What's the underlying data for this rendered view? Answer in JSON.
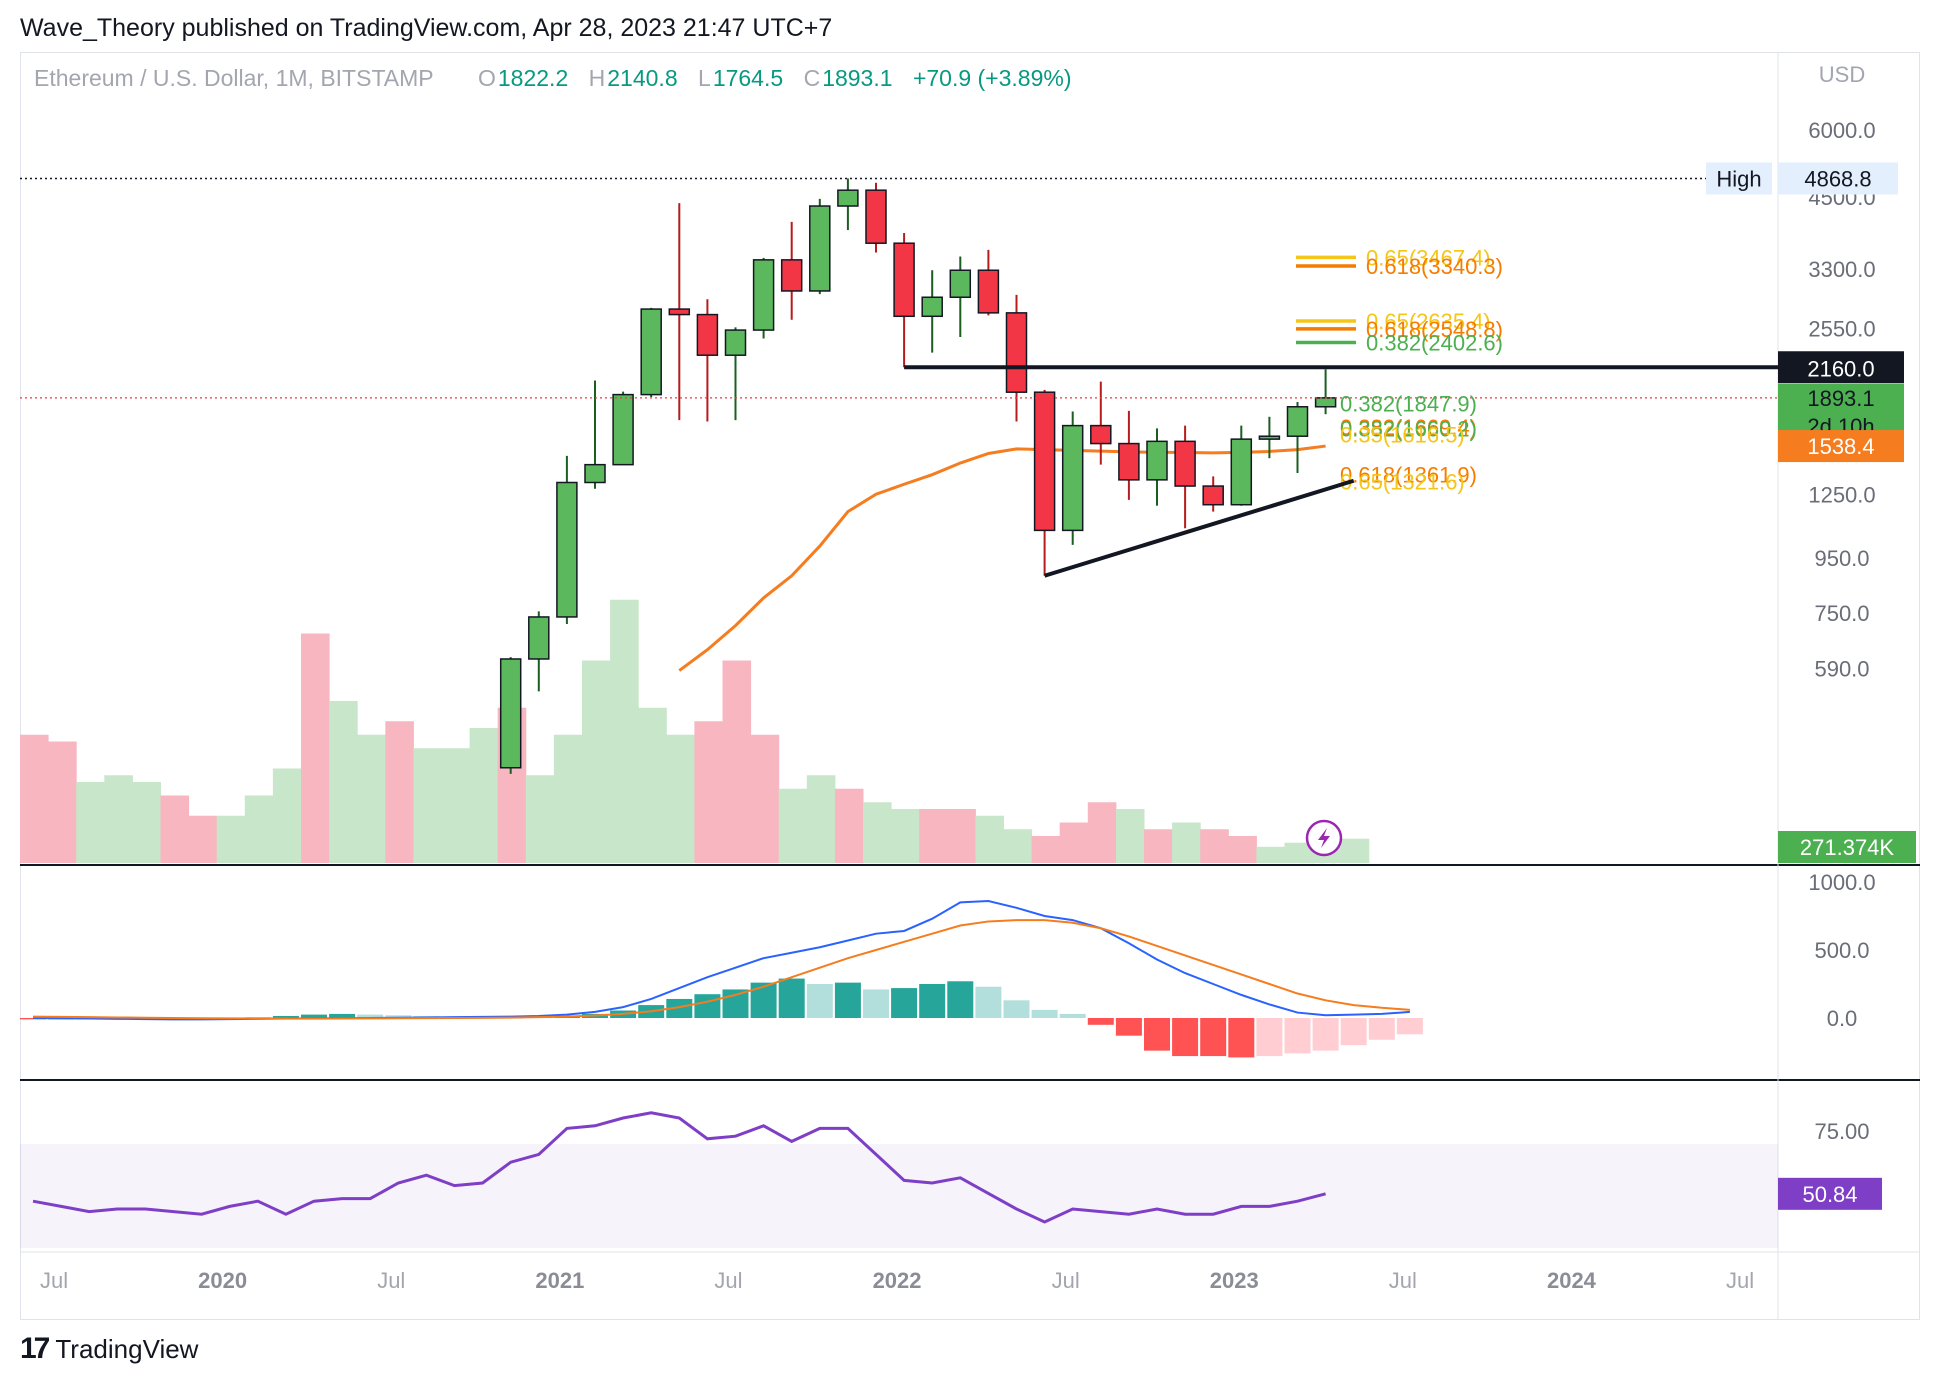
{
  "publisher_line": "Wave_Theory published on TradingView.com, Apr 28, 2023 21:47 UTC+7",
  "legend": {
    "symbol": "Ethereum / U.S. Dollar, 1M, BITSTAMP",
    "o_label": "O",
    "o": "1822.2",
    "h_label": "H",
    "h": "2140.8",
    "l_label": "L",
    "l": "1764.5",
    "c_label": "C",
    "c": "1893.1",
    "change": "+70.9 (+3.89%)"
  },
  "footer": {
    "brand": "TradingView",
    "logo_text": "17"
  },
  "colors": {
    "up": "#5cb85c",
    "down": "#f23645",
    "ema": "#f57c1f",
    "macd": "#2962ff",
    "signal": "#f57c1f",
    "rsi": "#7e3fc6",
    "fib_green": "#4caf50",
    "fib_orange": "#f57c00",
    "fib_yellow": "#f5c518",
    "price_dotted": "#f23645"
  },
  "chart_data": [
    {
      "type": "candlestick",
      "title": "Ethereum / U.S. Dollar, 1M, BITSTAMP",
      "currency": "USD",
      "y_scale": "log",
      "ylim": [
        430,
        7300
      ],
      "y_ticks": [
        "6000.0",
        "4500.0",
        "3300.0",
        "2550.0",
        "1250.0",
        "950.0",
        "750.0",
        "590.0"
      ],
      "x_ticks": [
        "Jul",
        "2020",
        "Jul",
        "2021",
        "Jul",
        "2022",
        "Jul",
        "2023",
        "Jul",
        "2024",
        "Jul"
      ],
      "candles": [
        {
          "month": "2020-11",
          "o": 385,
          "h": 620,
          "l": 375,
          "c": 615
        },
        {
          "month": "2020-12",
          "o": 615,
          "h": 755,
          "l": 535,
          "c": 737
        },
        {
          "month": "2021-01",
          "o": 737,
          "h": 1475,
          "l": 715,
          "c": 1315
        },
        {
          "month": "2021-02",
          "o": 1315,
          "h": 2040,
          "l": 1280,
          "c": 1420
        },
        {
          "month": "2021-03",
          "o": 1420,
          "h": 1945,
          "l": 1420,
          "c": 1920
        },
        {
          "month": "2021-04",
          "o": 1920,
          "h": 2790,
          "l": 1900,
          "c": 2775
        },
        {
          "month": "2021-05",
          "o": 2775,
          "h": 4380,
          "l": 1720,
          "c": 2710
        },
        {
          "month": "2021-06",
          "o": 2710,
          "h": 2895,
          "l": 1710,
          "c": 2275
        },
        {
          "month": "2021-07",
          "o": 2275,
          "h": 2565,
          "l": 1720,
          "c": 2535
        },
        {
          "month": "2021-08",
          "o": 2535,
          "h": 3460,
          "l": 2445,
          "c": 3430
        },
        {
          "month": "2021-09",
          "o": 3430,
          "h": 4040,
          "l": 2650,
          "c": 3000
        },
        {
          "month": "2021-10",
          "o": 3000,
          "h": 4460,
          "l": 2960,
          "c": 4325
        },
        {
          "month": "2021-11",
          "o": 4325,
          "h": 4870,
          "l": 3900,
          "c": 4630
        },
        {
          "month": "2021-12",
          "o": 4630,
          "h": 4780,
          "l": 3540,
          "c": 3685
        },
        {
          "month": "2022-01",
          "o": 3685,
          "h": 3850,
          "l": 2160,
          "c": 2690
        },
        {
          "month": "2022-02",
          "o": 2690,
          "h": 3280,
          "l": 2300,
          "c": 2920
        },
        {
          "month": "2022-03",
          "o": 2920,
          "h": 3480,
          "l": 2460,
          "c": 3280
        },
        {
          "month": "2022-04",
          "o": 3280,
          "h": 3580,
          "l": 2700,
          "c": 2730
        },
        {
          "month": "2022-05",
          "o": 2730,
          "h": 2950,
          "l": 1710,
          "c": 1940
        },
        {
          "month": "2022-06",
          "o": 1940,
          "h": 1960,
          "l": 880,
          "c": 1070
        },
        {
          "month": "2022-07",
          "o": 1070,
          "h": 1785,
          "l": 1005,
          "c": 1680
        },
        {
          "month": "2022-08",
          "o": 1680,
          "h": 2030,
          "l": 1420,
          "c": 1555
        },
        {
          "month": "2022-09",
          "o": 1555,
          "h": 1790,
          "l": 1220,
          "c": 1330
        },
        {
          "month": "2022-10",
          "o": 1330,
          "h": 1660,
          "l": 1190,
          "c": 1570
        },
        {
          "month": "2022-11",
          "o": 1570,
          "h": 1680,
          "l": 1080,
          "c": 1295
        },
        {
          "month": "2022-12",
          "o": 1295,
          "h": 1350,
          "l": 1160,
          "c": 1195
        },
        {
          "month": "2023-01",
          "o": 1195,
          "h": 1680,
          "l": 1190,
          "c": 1585
        },
        {
          "month": "2023-02",
          "o": 1585,
          "h": 1745,
          "l": 1460,
          "c": 1605
        },
        {
          "month": "2023-03",
          "o": 1605,
          "h": 1860,
          "l": 1370,
          "c": 1822
        },
        {
          "month": "2023-04",
          "o": 1822,
          "h": 2140.8,
          "l": 1764.5,
          "c": 1893.1
        }
      ],
      "ema": [
        {
          "month": "2021-05",
          "v": 585
        },
        {
          "month": "2021-06",
          "v": 640
        },
        {
          "month": "2021-07",
          "v": 710
        },
        {
          "month": "2021-08",
          "v": 800
        },
        {
          "month": "2021-09",
          "v": 880
        },
        {
          "month": "2021-10",
          "v": 1000
        },
        {
          "month": "2021-11",
          "v": 1160
        },
        {
          "month": "2021-12",
          "v": 1250
        },
        {
          "month": "2022-01",
          "v": 1305
        },
        {
          "month": "2022-02",
          "v": 1360
        },
        {
          "month": "2022-03",
          "v": 1430
        },
        {
          "month": "2022-04",
          "v": 1490
        },
        {
          "month": "2022-05",
          "v": 1520
        },
        {
          "month": "2022-06",
          "v": 1515
        },
        {
          "month": "2022-07",
          "v": 1510
        },
        {
          "month": "2022-08",
          "v": 1505
        },
        {
          "month": "2022-09",
          "v": 1500
        },
        {
          "month": "2022-10",
          "v": 1498
        },
        {
          "month": "2022-11",
          "v": 1496
        },
        {
          "month": "2022-12",
          "v": 1494
        },
        {
          "month": "2023-01",
          "v": 1497
        },
        {
          "month": "2023-02",
          "v": 1503
        },
        {
          "month": "2023-03",
          "v": 1515
        },
        {
          "month": "2023-04",
          "v": 1538.4
        }
      ],
      "volume": [
        {
          "month": "2019-06",
          "v": 95,
          "dir": "down"
        },
        {
          "month": "2019-07",
          "v": 90,
          "dir": "down"
        },
        {
          "month": "2019-08",
          "v": 60,
          "dir": "up"
        },
        {
          "month": "2019-09",
          "v": 65,
          "dir": "up"
        },
        {
          "month": "2019-10",
          "v": 60,
          "dir": "up"
        },
        {
          "month": "2019-11",
          "v": 50,
          "dir": "down"
        },
        {
          "month": "2019-12",
          "v": 35,
          "dir": "down"
        },
        {
          "month": "2020-01",
          "v": 35,
          "dir": "up"
        },
        {
          "month": "2020-02",
          "v": 50,
          "dir": "up"
        },
        {
          "month": "2020-03",
          "v": 70,
          "dir": "up"
        },
        {
          "month": "2020-04",
          "v": 170,
          "dir": "down"
        },
        {
          "month": "2020-05",
          "v": 120,
          "dir": "up"
        },
        {
          "month": "2020-06",
          "v": 95,
          "dir": "up"
        },
        {
          "month": "2020-07",
          "v": 105,
          "dir": "down"
        },
        {
          "month": "2020-08",
          "v": 85,
          "dir": "up"
        },
        {
          "month": "2020-09",
          "v": 85,
          "dir": "up"
        },
        {
          "month": "2020-10",
          "v": 100,
          "dir": "up"
        },
        {
          "month": "2020-11",
          "v": 115,
          "dir": "down"
        },
        {
          "month": "2020-12",
          "v": 65,
          "dir": "up"
        },
        {
          "month": "2021-01",
          "v": 95,
          "dir": "up"
        },
        {
          "month": "2021-02",
          "v": 150,
          "dir": "up"
        },
        {
          "month": "2021-03",
          "v": 195,
          "dir": "up"
        },
        {
          "month": "2021-04",
          "v": 115,
          "dir": "up"
        },
        {
          "month": "2021-05",
          "v": 95,
          "dir": "up"
        },
        {
          "month": "2021-06",
          "v": 105,
          "dir": "down"
        },
        {
          "month": "2021-07",
          "v": 150,
          "dir": "down"
        },
        {
          "month": "2021-08",
          "v": 95,
          "dir": "down"
        },
        {
          "month": "2021-09",
          "v": 55,
          "dir": "up"
        },
        {
          "month": "2021-10",
          "v": 65,
          "dir": "up"
        },
        {
          "month": "2021-11",
          "v": 55,
          "dir": "down"
        },
        {
          "month": "2021-12",
          "v": 45,
          "dir": "up"
        },
        {
          "month": "2021-13",
          "v": 40,
          "dir": "up"
        },
        {
          "month": "2022-01",
          "v": 40,
          "dir": "down"
        },
        {
          "month": "2022-02",
          "v": 40,
          "dir": "down"
        },
        {
          "month": "2022-03",
          "v": 35,
          "dir": "up"
        },
        {
          "month": "2022-04",
          "v": 25,
          "dir": "up"
        },
        {
          "month": "2022-05",
          "v": 20,
          "dir": "down"
        },
        {
          "month": "2022-06",
          "v": 30,
          "dir": "down"
        },
        {
          "month": "2022-07",
          "v": 45,
          "dir": "down"
        },
        {
          "month": "2022-08",
          "v": 40,
          "dir": "up"
        },
        {
          "month": "2022-09",
          "v": 25,
          "dir": "down"
        },
        {
          "month": "2022-10",
          "v": 30,
          "dir": "up"
        },
        {
          "month": "2022-11",
          "v": 25,
          "dir": "down"
        },
        {
          "month": "2022-12",
          "v": 20,
          "dir": "down"
        },
        {
          "month": "2023-01",
          "v": 12,
          "dir": "up"
        },
        {
          "month": "2023-02",
          "v": 15,
          "dir": "up"
        },
        {
          "month": "2023-03",
          "v": 12,
          "dir": "up"
        },
        {
          "month": "2023-04",
          "v": 18,
          "dir": "up"
        }
      ],
      "annotations": {
        "high": {
          "label": "High",
          "value": "4868.8",
          "price": 4868.8
        },
        "horizontal_level": {
          "label": "2160.0",
          "price": 2160
        },
        "current_price": {
          "label": "1893.1",
          "countdown": "2d 10h",
          "price": 1893.1
        },
        "ema_label": "1538.4",
        "volume_label": "271.374K",
        "fib_levels": [
          {
            "text": "0.65(3467.4)",
            "price": 3467.4,
            "color": "yellow"
          },
          {
            "text": "0.618(3340.3)",
            "price": 3340.3,
            "color": "orange"
          },
          {
            "text": "0.65(2635.4)",
            "price": 2635.4,
            "color": "yellow"
          },
          {
            "text": "0.618(2548.8)",
            "price": 2548.8,
            "color": "orange"
          },
          {
            "text": "0.382(2402.6)",
            "price": 2402.6,
            "color": "green"
          },
          {
            "text": "0.382(1847.9)",
            "price": 1847.9,
            "color": "green"
          },
          {
            "text": "0.382(1669.4)",
            "price": 1669.4,
            "color": "orange"
          },
          {
            "text": "0.382(1660.2)",
            "price": 1660.2,
            "color": "green"
          },
          {
            "text": "0.35(1616.5)",
            "price": 1616.5,
            "color": "yellow"
          },
          {
            "text": "0.618(1361.9)",
            "price": 1361.9,
            "color": "orange"
          },
          {
            "text": "0.65(1321.6)",
            "price": 1321.6,
            "color": "yellow"
          }
        ],
        "trendline": {
          "from": {
            "month": "2022-06",
            "price": 880
          },
          "to": {
            "month": "2023-05",
            "price": 1325
          }
        }
      }
    },
    {
      "type": "macd",
      "y_ticks": [
        "1000.0",
        "500.0",
        "0.0"
      ],
      "ylim": [
        -350,
        1050
      ],
      "macd": [
        0,
        -2,
        -4,
        -6,
        -8,
        -10,
        -10,
        -8,
        -6,
        -4,
        -3,
        -2,
        0,
        2,
        4,
        6,
        8,
        10,
        15,
        25,
        45,
        80,
        140,
        220,
        300,
        370,
        440,
        480,
        520,
        570,
        620,
        640,
        730,
        850,
        860,
        810,
        750,
        720,
        660,
        550,
        430,
        330,
        250,
        170,
        100,
        40,
        20,
        25,
        30,
        45
      ],
      "signal": [
        10,
        8,
        6,
        4,
        2,
        0,
        -2,
        -3,
        -4,
        -5,
        -5,
        -4,
        -3,
        -2,
        -1,
        0,
        1,
        3,
        6,
        10,
        18,
        30,
        50,
        80,
        120,
        170,
        230,
        300,
        370,
        440,
        500,
        560,
        620,
        680,
        710,
        720,
        720,
        700,
        660,
        600,
        530,
        460,
        390,
        320,
        250,
        180,
        130,
        95,
        75,
        60
      ],
      "histogram": [
        -10,
        -10,
        -10,
        -10,
        -10,
        -10,
        -8,
        -5,
        5,
        15,
        25,
        30,
        25,
        20,
        15,
        10,
        5,
        5,
        10,
        15,
        30,
        55,
        95,
        140,
        175,
        210,
        260,
        290,
        250,
        260,
        210,
        220,
        250,
        270,
        230,
        130,
        60,
        30,
        -50,
        -130,
        -240,
        -280,
        -280,
        -290,
        -280,
        -260,
        -240,
        -200,
        -160,
        -120
      ]
    },
    {
      "type": "rsi",
      "y_ticks": [
        "75.00"
      ],
      "band": [
        30,
        70
      ],
      "ylim": [
        20,
        100
      ],
      "current_label": "50.84",
      "values": [
        48,
        46,
        44,
        45,
        45,
        44,
        43,
        46,
        48,
        43,
        48,
        49,
        49,
        55,
        58,
        54,
        55,
        63,
        66,
        76,
        77,
        80,
        82,
        80,
        72,
        73,
        77,
        71,
        76,
        76,
        66,
        56,
        55,
        57,
        51,
        45,
        40,
        45,
        44,
        43,
        45,
        43,
        43,
        46,
        46,
        48,
        50.84
      ]
    }
  ]
}
